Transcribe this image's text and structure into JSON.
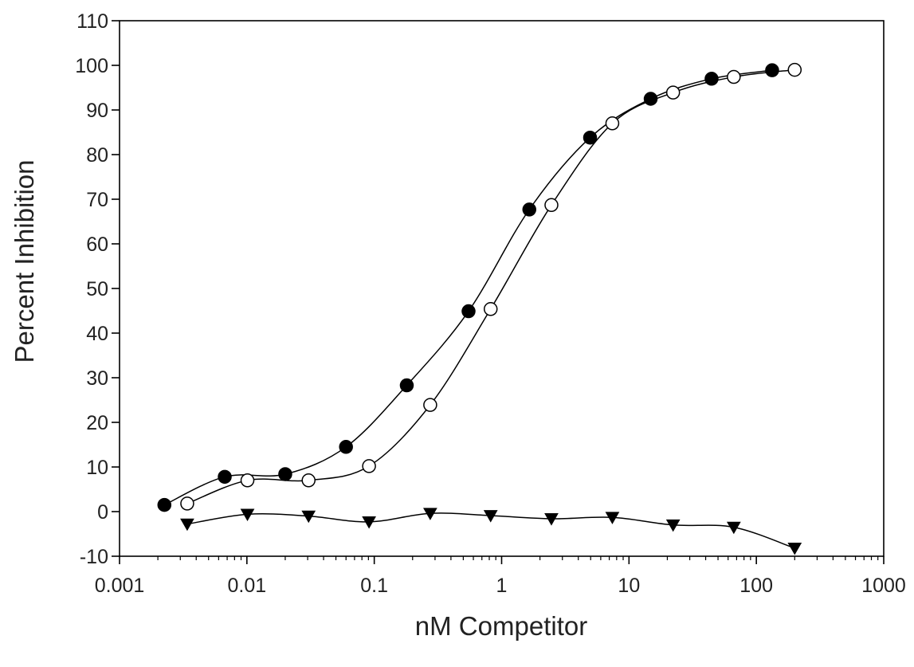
{
  "chart_data": {
    "type": "scatter",
    "title": "",
    "xlabel": "nM Competitor",
    "ylabel": "Percent Inhibition",
    "x_scale": "log",
    "xlim": [
      0.001,
      1000
    ],
    "ylim": [
      -10,
      110
    ],
    "x_ticks": [
      "0.001",
      "0.01",
      "0.1",
      "1",
      "10",
      "100",
      "1000"
    ],
    "y_ticks": [
      "-10",
      "0",
      "10",
      "20",
      "30",
      "40",
      "50",
      "60",
      "70",
      "80",
      "90",
      "100",
      "110"
    ],
    "grid": false,
    "legend": "none",
    "series": [
      {
        "marker": "filled-circle",
        "color": "#000000",
        "x": [
          0.00225,
          0.0067,
          0.02,
          0.06,
          0.18,
          0.55,
          1.65,
          4.95,
          14.8,
          44.5,
          133
        ],
        "y": [
          1.5,
          7.8,
          8.4,
          14.5,
          28.3,
          44.9,
          67.7,
          83.8,
          92.5,
          97.0,
          98.9
        ]
      },
      {
        "marker": "open-circle",
        "color": "#000000",
        "x": [
          0.0034,
          0.0101,
          0.0305,
          0.091,
          0.275,
          0.82,
          2.46,
          7.4,
          22.2,
          66.5,
          200
        ],
        "y": [
          1.8,
          7.0,
          7.0,
          10.2,
          23.9,
          45.4,
          68.7,
          87.0,
          93.9,
          97.4,
          99.0
        ]
      },
      {
        "marker": "filled-triangle-down",
        "color": "#000000",
        "x": [
          0.0034,
          0.0101,
          0.0305,
          0.091,
          0.275,
          0.82,
          2.46,
          7.4,
          22.2,
          66.5,
          200
        ],
        "y": [
          -2.8,
          -0.6,
          -1.0,
          -2.3,
          -0.4,
          -0.9,
          -1.6,
          -1.3,
          -3.0,
          -3.5,
          -8.2
        ]
      }
    ]
  }
}
